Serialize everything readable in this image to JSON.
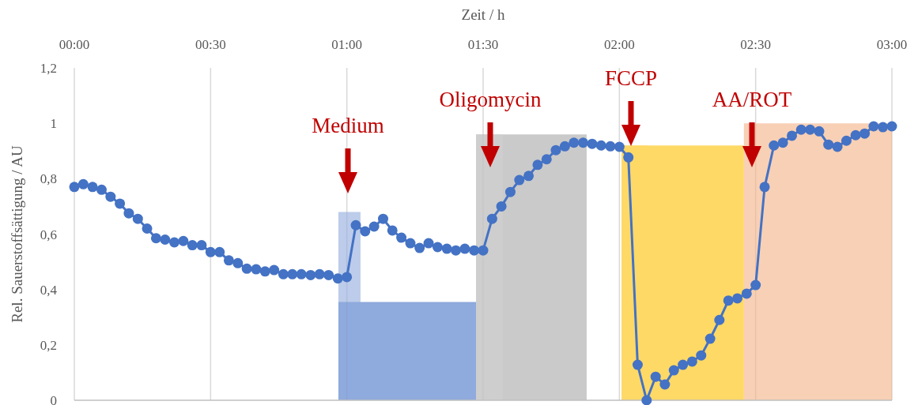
{
  "chart_data": {
    "type": "line",
    "xlabel": "Zeit / h",
    "ylabel": "Rel. Sauerstoffsättigung / AU",
    "xlim": [
      0,
      3
    ],
    "xticks": [
      {
        "value": 0,
        "label": "00:00"
      },
      {
        "value": 0.5,
        "label": "00:30"
      },
      {
        "value": 1,
        "label": "01:00"
      },
      {
        "value": 1.5,
        "label": "01:30"
      },
      {
        "value": 2,
        "label": "02:00"
      },
      {
        "value": 2.5,
        "label": "02:30"
      },
      {
        "value": 3,
        "label": "03:00"
      }
    ],
    "ylim": [
      0,
      1.2
    ],
    "yticks": [
      {
        "value": 0,
        "label": "0"
      },
      {
        "value": 0.2,
        "label": "0,2"
      },
      {
        "value": 0.4,
        "label": "0,4"
      },
      {
        "value": 0.6,
        "label": "0,6"
      },
      {
        "value": 0.8,
        "label": "0,8"
      },
      {
        "value": 1,
        "label": "1"
      },
      {
        "value": 1.2,
        "label": "1,2"
      }
    ],
    "grid": "x",
    "series": [
      {
        "type": "area",
        "color": "#4472c4",
        "x": [
          0.969,
          1.474
        ],
        "values": [
          0.355,
          0.355
        ]
      },
      {
        "type": "area",
        "color": "#8faadc",
        "x": [
          0.969,
          1.05
        ],
        "values": [
          0.68,
          0.68
        ]
      },
      {
        "type": "area",
        "color": "#a6a6a6",
        "x": [
          1.474,
          1.88
        ],
        "values": [
          0.96,
          0.96
        ]
      },
      {
        "type": "area",
        "color": "#d0d0d0",
        "x": [
          1.474,
          1.572
        ],
        "values": [
          0.96,
          0.96
        ]
      },
      {
        "type": "area",
        "color": "#ffc000",
        "x": [
          2.008,
          2.457
        ],
        "values": [
          0.92,
          0.92
        ]
      },
      {
        "type": "area",
        "color": "#ffd966",
        "x": [
          2.008,
          2.106
        ],
        "values": [
          0.92,
          0.92
        ]
      },
      {
        "type": "area",
        "color": "#f4b183",
        "x": [
          2.457,
          3
        ],
        "values": [
          1.0,
          1.0
        ]
      },
      {
        "color": "#4472c4",
        "marker": "circle",
        "line_style": "solid",
        "x": [
          0,
          0.033,
          0.067,
          0.1,
          0.133,
          0.167,
          0.2,
          0.233,
          0.267,
          0.3,
          0.333,
          0.367,
          0.4,
          0.433,
          0.467,
          0.5,
          0.533,
          0.567,
          0.6,
          0.633,
          0.667,
          0.7,
          0.733,
          0.767,
          0.8,
          0.833,
          0.867,
          0.9,
          0.933,
          0.967,
          1,
          1.033,
          1.067,
          1.1,
          1.133,
          1.167,
          1.2,
          1.233,
          1.267,
          1.3,
          1.333,
          1.367,
          1.4,
          1.433,
          1.467,
          1.5,
          1.533,
          1.567,
          1.6,
          1.633,
          1.667,
          1.7,
          1.733,
          1.767,
          1.8,
          1.833,
          1.867,
          1.9,
          1.933,
          1.967,
          2,
          2.033,
          2.067,
          2.1,
          2.133,
          2.167,
          2.2,
          2.233,
          2.267,
          2.3,
          2.333,
          2.367,
          2.4,
          2.433,
          2.467,
          2.5,
          2.533,
          2.567,
          2.6,
          2.633,
          2.667,
          2.7,
          2.733,
          2.767,
          2.8,
          2.833,
          2.867,
          2.9,
          2.933,
          2.967,
          3
        ],
        "values": [
          0.77,
          0.78,
          0.77,
          0.76,
          0.735,
          0.71,
          0.675,
          0.655,
          0.62,
          0.585,
          0.58,
          0.57,
          0.575,
          0.56,
          0.56,
          0.535,
          0.535,
          0.505,
          0.495,
          0.475,
          0.473,
          0.465,
          0.47,
          0.455,
          0.455,
          0.455,
          0.452,
          0.455,
          0.452,
          0.44,
          0.445,
          0.632,
          0.61,
          0.627,
          0.655,
          0.613,
          0.587,
          0.567,
          0.55,
          0.567,
          0.553,
          0.547,
          0.541,
          0.547,
          0.541,
          0.541,
          0.655,
          0.7,
          0.752,
          0.795,
          0.81,
          0.85,
          0.87,
          0.903,
          0.917,
          0.93,
          0.93,
          0.926,
          0.92,
          0.917,
          0.915,
          0.877,
          0.128,
          0,
          0.085,
          0.057,
          0.108,
          0.128,
          0.14,
          0.162,
          0.222,
          0.29,
          0.36,
          0.368,
          0.385,
          0.416,
          0.77,
          0.92,
          0.93,
          0.955,
          0.977,
          0.977,
          0.971,
          0.923,
          0.915,
          0.937,
          0.957,
          0.963,
          0.989,
          0.986,
          0.989
        ]
      }
    ],
    "annotations": [
      "Medium",
      "Oligomycin",
      "FCCP",
      "AA/ROT"
    ]
  }
}
